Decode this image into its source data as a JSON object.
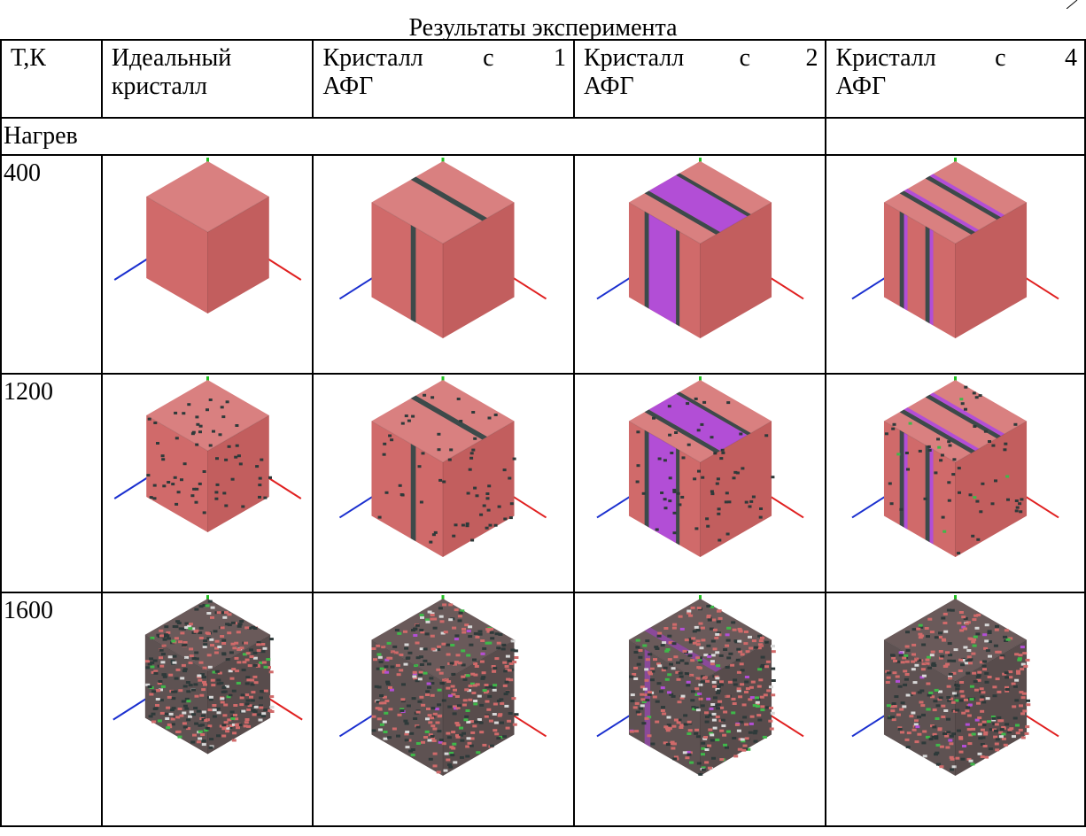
{
  "title": "Результаты эксперимента",
  "header": {
    "col_t": "Т,К",
    "col_ideal": [
      "Идеальный",
      "кристалл"
    ],
    "col_1": [
      "Кристалл",
      "с",
      "1",
      "АФГ"
    ],
    "col_2": [
      "Кристалл",
      "с",
      "2",
      "АФГ"
    ],
    "col_4": [
      "Кристалл",
      "с",
      "4",
      "АФГ"
    ]
  },
  "section_label": "Нагрев",
  "rows": [
    {
      "temperature": "400",
      "state": "ordered"
    },
    {
      "temperature": "1200",
      "state": "defects"
    },
    {
      "temperature": "1600",
      "state": "disordered"
    }
  ],
  "columns": [
    {
      "key": "ideal",
      "apb_count": 0
    },
    {
      "key": "apb1",
      "apb_count": 1
    },
    {
      "key": "apb2",
      "apb_count": 2
    },
    {
      "key": "apb4",
      "apb_count": 4
    }
  ],
  "colors": {
    "crystal": "#d06a6a",
    "crystal_top": "#d98080",
    "crystal_right": "#c25e5e",
    "apb_band": "#b24ed6",
    "apb_line": "#3d4a4a",
    "defect": "#2e3a3a",
    "green_atom": "#3fb84a",
    "axis_x": "#e02020",
    "axis_z": "#1a2fcf",
    "axis_y": "#22c022"
  }
}
